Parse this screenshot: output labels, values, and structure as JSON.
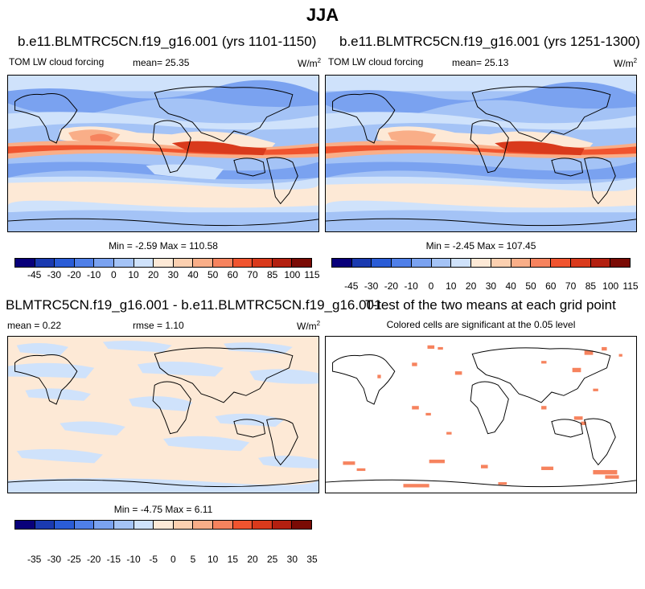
{
  "main_title": "JJA",
  "panels": {
    "p1": {
      "title": "b.e11.BLMTRC5CN.f19_g16.001 (yrs 1101-1150)",
      "variable": "TOM LW cloud forcing",
      "mean_label": "mean=  25.35",
      "units": "W/m",
      "units_sup": "2",
      "minmax": "Min =  -2.59 Max = 110.58"
    },
    "p2": {
      "title": "b.e11.BLMTRC5CN.f19_g16.001 (yrs 1251-1300)",
      "variable": "TOM LW cloud forcing",
      "mean_label": "mean=  25.13",
      "units": "W/m",
      "units_sup": "2",
      "minmax": "Min =  -2.45 Max = 107.45"
    },
    "p3": {
      "title": "BLMTRC5CN.f19_g16.001 - b.e11.BLMTRC5CN.f19_g16.001",
      "mean_label": "mean =   0.22",
      "rmse_label": "rmse =   1.10",
      "units": "W/m",
      "units_sup": "2",
      "minmax": "Min =  -4.75 Max =   6.11"
    },
    "p4": {
      "title": "T-test of the two means at each grid point",
      "subtitle": "Colored cells are significant at the 0.05 level"
    }
  },
  "colorbars": {
    "main": {
      "colors": [
        "#08007a",
        "#1a3ab0",
        "#2a5cd6",
        "#4f7fe8",
        "#7aa2f0",
        "#a4c3f6",
        "#cfe2fb",
        "#fde9d6",
        "#fcd0b0",
        "#f9ae88",
        "#f6835e",
        "#f0542f",
        "#d93a1c",
        "#b32010",
        "#7a0b05"
      ],
      "labels": [
        "-45",
        "-30",
        "-20",
        "-10",
        "0",
        "10",
        "20",
        "30",
        "40",
        "50",
        "60",
        "70",
        "85",
        "100",
        "115"
      ]
    },
    "diff": {
      "colors": [
        "#08007a",
        "#1a3ab0",
        "#2a5cd6",
        "#4f7fe8",
        "#7aa2f0",
        "#a4c3f6",
        "#cfe2fb",
        "#fde9d6",
        "#fcd0b0",
        "#f9ae88",
        "#f6835e",
        "#f0542f",
        "#d93a1c",
        "#b32010",
        "#7a0b05"
      ],
      "labels": [
        "-35",
        "-30",
        "-25",
        "-20",
        "-15",
        "-10",
        "-5",
        "0",
        "5",
        "10",
        "15",
        "20",
        "25",
        "30",
        "35"
      ]
    }
  }
}
